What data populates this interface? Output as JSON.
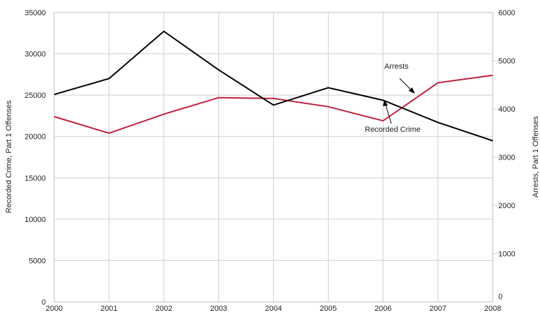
{
  "chart_data": {
    "type": "line",
    "x": [
      2000,
      2001,
      2002,
      2003,
      2004,
      2005,
      2006,
      2007,
      2008
    ],
    "ylabel_left": "Recorded Crime, Part 1 Offenses",
    "ylabel_right": "Arrests, Part 1 Offenses",
    "ylim_left": [
      0,
      35000
    ],
    "ylim_right": [
      0,
      6000
    ],
    "yticks_left": [
      0,
      5000,
      10000,
      15000,
      20000,
      25000,
      30000,
      35000
    ],
    "yticks_right": [
      0,
      1000,
      2000,
      3000,
      4000,
      5000,
      6000
    ],
    "grid": true,
    "series": [
      {
        "name": "Recorded Crime",
        "axis": "left",
        "color": "#c0203a",
        "values": [
          22400,
          20400,
          22700,
          24700,
          24600,
          23600,
          21900,
          26500,
          27400
        ]
      },
      {
        "name": "Arrests",
        "axis": "right",
        "color": "#000000",
        "values": [
          4300,
          4630,
          5610,
          4810,
          4080,
          4440,
          4180,
          3720,
          3340
        ]
      }
    ],
    "annotations": [
      {
        "text": "Arrests",
        "series": "Arrests"
      },
      {
        "text": "Recorded Crime",
        "series": "Recorded Crime"
      }
    ]
  }
}
